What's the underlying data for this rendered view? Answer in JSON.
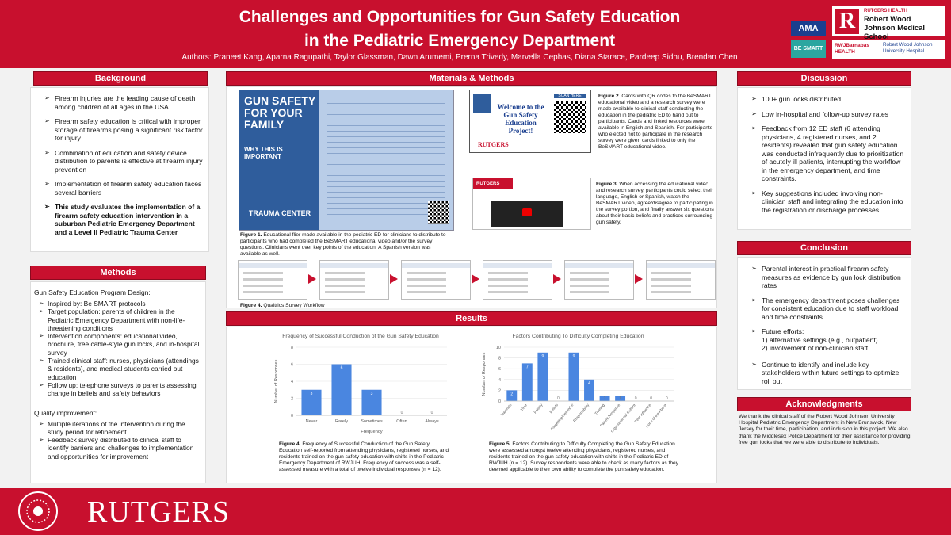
{
  "header": {
    "title_line1": "Challenges and Opportunities for Gun Safety Education",
    "title_line2": "in the Pediatric Emergency Department",
    "authors": "Authors: Praneet Kang, Aparna Ragupathi, Taylor Glassman, Dawn Arumemi, Prerna Trivedy, Marvella Cephas, Diana Starace, Pardeep Sidhu, Brendan Chen"
  },
  "logos": {
    "ama": "AMA",
    "besmart": "BE SMART",
    "rutgers_health": "RUTGERS HEALTH",
    "rwjms": "Robert Wood Johnson Medical School",
    "rwjbarnabas": "RWJBarnabas HEALTH",
    "rwjuh": "Robert Wood Johnson University Hospital"
  },
  "background": {
    "heading": "Background",
    "items": [
      "Firearm injuries are the leading cause of death among children of all ages in the USA",
      "Firearm safety education is critical with improper storage of firearms posing a significant risk factor for injury",
      "Combination of education and safety device distribution to parents is effective at firearm injury prevention",
      "Implementation of firearm safety education faces several barriers"
    ],
    "aim": "This study evaluates the implementation of a firearm safety education intervention in a suburban Pediatric Emergency Department and a Level II Pediatric Trauma Center"
  },
  "methods": {
    "heading": "Methods",
    "design_heading": "Gun Safety Education Program Design:",
    "design_items": [
      "Inspired by: Be SMART protocols",
      "Target population: parents of children in the Pediatric Emergency Department with non-life-threatening conditions",
      "Intervention components: educational video, brochure, free cable-style gun locks, and in-hospital survey",
      "Trained clinical staff: nurses, physicians (attendings & residents), and medical students carried out education",
      "Follow up: telephone surveys to parents assessing change in beliefs and safety behaviors"
    ],
    "qi_heading": "Quality improvement:",
    "qi_items": [
      "Multiple iterations of the intervention during the study period for refinement",
      "Feedback survey distributed to clinical staff to identify barriers and challenges to implementation and opportunities for improvement"
    ]
  },
  "materials": {
    "heading": "Materials & Methods",
    "flier": {
      "title": "GUN SAFETY FOR YOUR FAMILY",
      "subtitle": "WHY THIS IS IMPORTANT",
      "footer": "TRAUMA CENTER"
    },
    "card": {
      "welcome": "Welcome to the Gun Safety Education Project!",
      "scan": "SCAN HERE",
      "brand": "RUTGERS"
    },
    "video_brand": "RUTGERS",
    "figures": [
      {
        "label": "Figure 1.",
        "text": "Educational flier made available in the pediatric ED for clinicians to distribute to participants who had completed the BeSMART educational video and/or the survey questions. Clinicians went over key points of the education. A Spanish version was available as well."
      },
      {
        "label": "Figure 2.",
        "text": "Cards with QR codes to the BeSMART educational video and a research survey were made available to clinical staff conducting the education in the pediatric ED to hand out to participants. Cards and linked resources were available in English and Spanish. For participants who elected not to participate in the research survey were given cards linked to only the BeSMART educational video."
      },
      {
        "label": "Figure 3.",
        "text": "When accessing the educational video and research survey, participants could select their language, English or Spanish, watch the BeSMART video, agree/disagree to participating in the survey portion, and finally answer six questions about their basic beliefs and practices surrounding gun safety."
      },
      {
        "label": "Figure 4.",
        "text": "Qualtrics Survey Workflow"
      }
    ]
  },
  "results": {
    "heading": "Results",
    "figures": [
      {
        "label": "Figure 4.",
        "text": "Frequency of Successful Conduction of the Gun Safety Education self-reported from attending physicians, registered nurses, and residents trained on the gun safety education with shifts in the Pediatric Emergency Department of RWJUH. Frequency of success was a self-assessed measure with a total of twelve individual responses (n = 12)."
      },
      {
        "label": "Figure 5.",
        "text": "Factors Contributing to Difficulty Completing the Gun Safety Education were assessed amongst twelve attending physicians, registered nurses, and residents trained on the gun safety education with shifts in the Pediatric ED of RWJUH (n = 12). Survey respondents were able to check as many factors as they deemed applicable to their own ability to complete the gun safety education."
      }
    ]
  },
  "chart_data": [
    {
      "type": "bar",
      "title": "Frequency of Successful Conduction of the Gun Safety Education",
      "categories": [
        "Never",
        "Rarely",
        "Sometimes",
        "Often",
        "Always"
      ],
      "values": [
        3,
        6,
        3,
        0,
        0
      ],
      "color": "#4a86e0",
      "ylim": [
        0,
        8
      ],
      "yticks": [
        0,
        2,
        4,
        6,
        8
      ],
      "y_label": "Number of Responses",
      "x_label": "Frequency",
      "grid": true
    },
    {
      "type": "bar",
      "title": "Factors Contributing To Difficulty Completing Education",
      "categories": [
        "Materials",
        "Time",
        "Priority",
        "Beliefs",
        "Forgetting/Reminder",
        "Responsibility",
        "Training",
        "Patient Response",
        "Organizational Culture",
        "Peer Influence",
        "None of the Above"
      ],
      "values": [
        2,
        7,
        9,
        0,
        9,
        4,
        1,
        1,
        0,
        0,
        0
      ],
      "color": "#4a86e0",
      "ylim": [
        0,
        10
      ],
      "yticks": [
        0,
        2,
        4,
        6,
        8,
        10
      ],
      "y_label": "Number of Responses",
      "grid": true
    }
  ],
  "discussion": {
    "heading": "Discussion",
    "items": [
      "100+ gun locks distributed",
      "Low in-hospital and follow-up survey rates",
      "Feedback from 12 ED staff (6 attending physicians, 4 registered nurses, and 2 residents) revealed that gun safety education was conducted infrequently due to prioritization of acutely ill patients, interrupting the workflow in the emergency department, and time constraints.",
      "Key suggestions included involving non-clinician staff and integrating the education into the registration or discharge processes."
    ]
  },
  "conclusion": {
    "heading": "Conclusion",
    "items": [
      "Parental interest in practical firearm safety measures as evidence by gun lock distribution rates",
      "The emergency department poses challenges for consistent education due to staff workload and time constraints",
      "Future efforts:",
      "Continue to identify and include key stakeholders within future settings to optimize roll out"
    ],
    "future_efforts": [
      "1) alternative settings (e.g., outpatient)",
      "2) involvement of non-clinician staff"
    ]
  },
  "acknowledgments": {
    "heading": "Acknowledgments",
    "text": "We thank the clinical staff of the Robert Wood Johnson University Hospital Pediatric Emergency Department in New Brunswick, New Jersey for their time, participation, and inclusion in this project. We also thank the Middlesex Police Department for their assistance for providing free gun locks that we were able to distribute to individuals."
  },
  "footer": {
    "brand": "RUTGERS"
  }
}
